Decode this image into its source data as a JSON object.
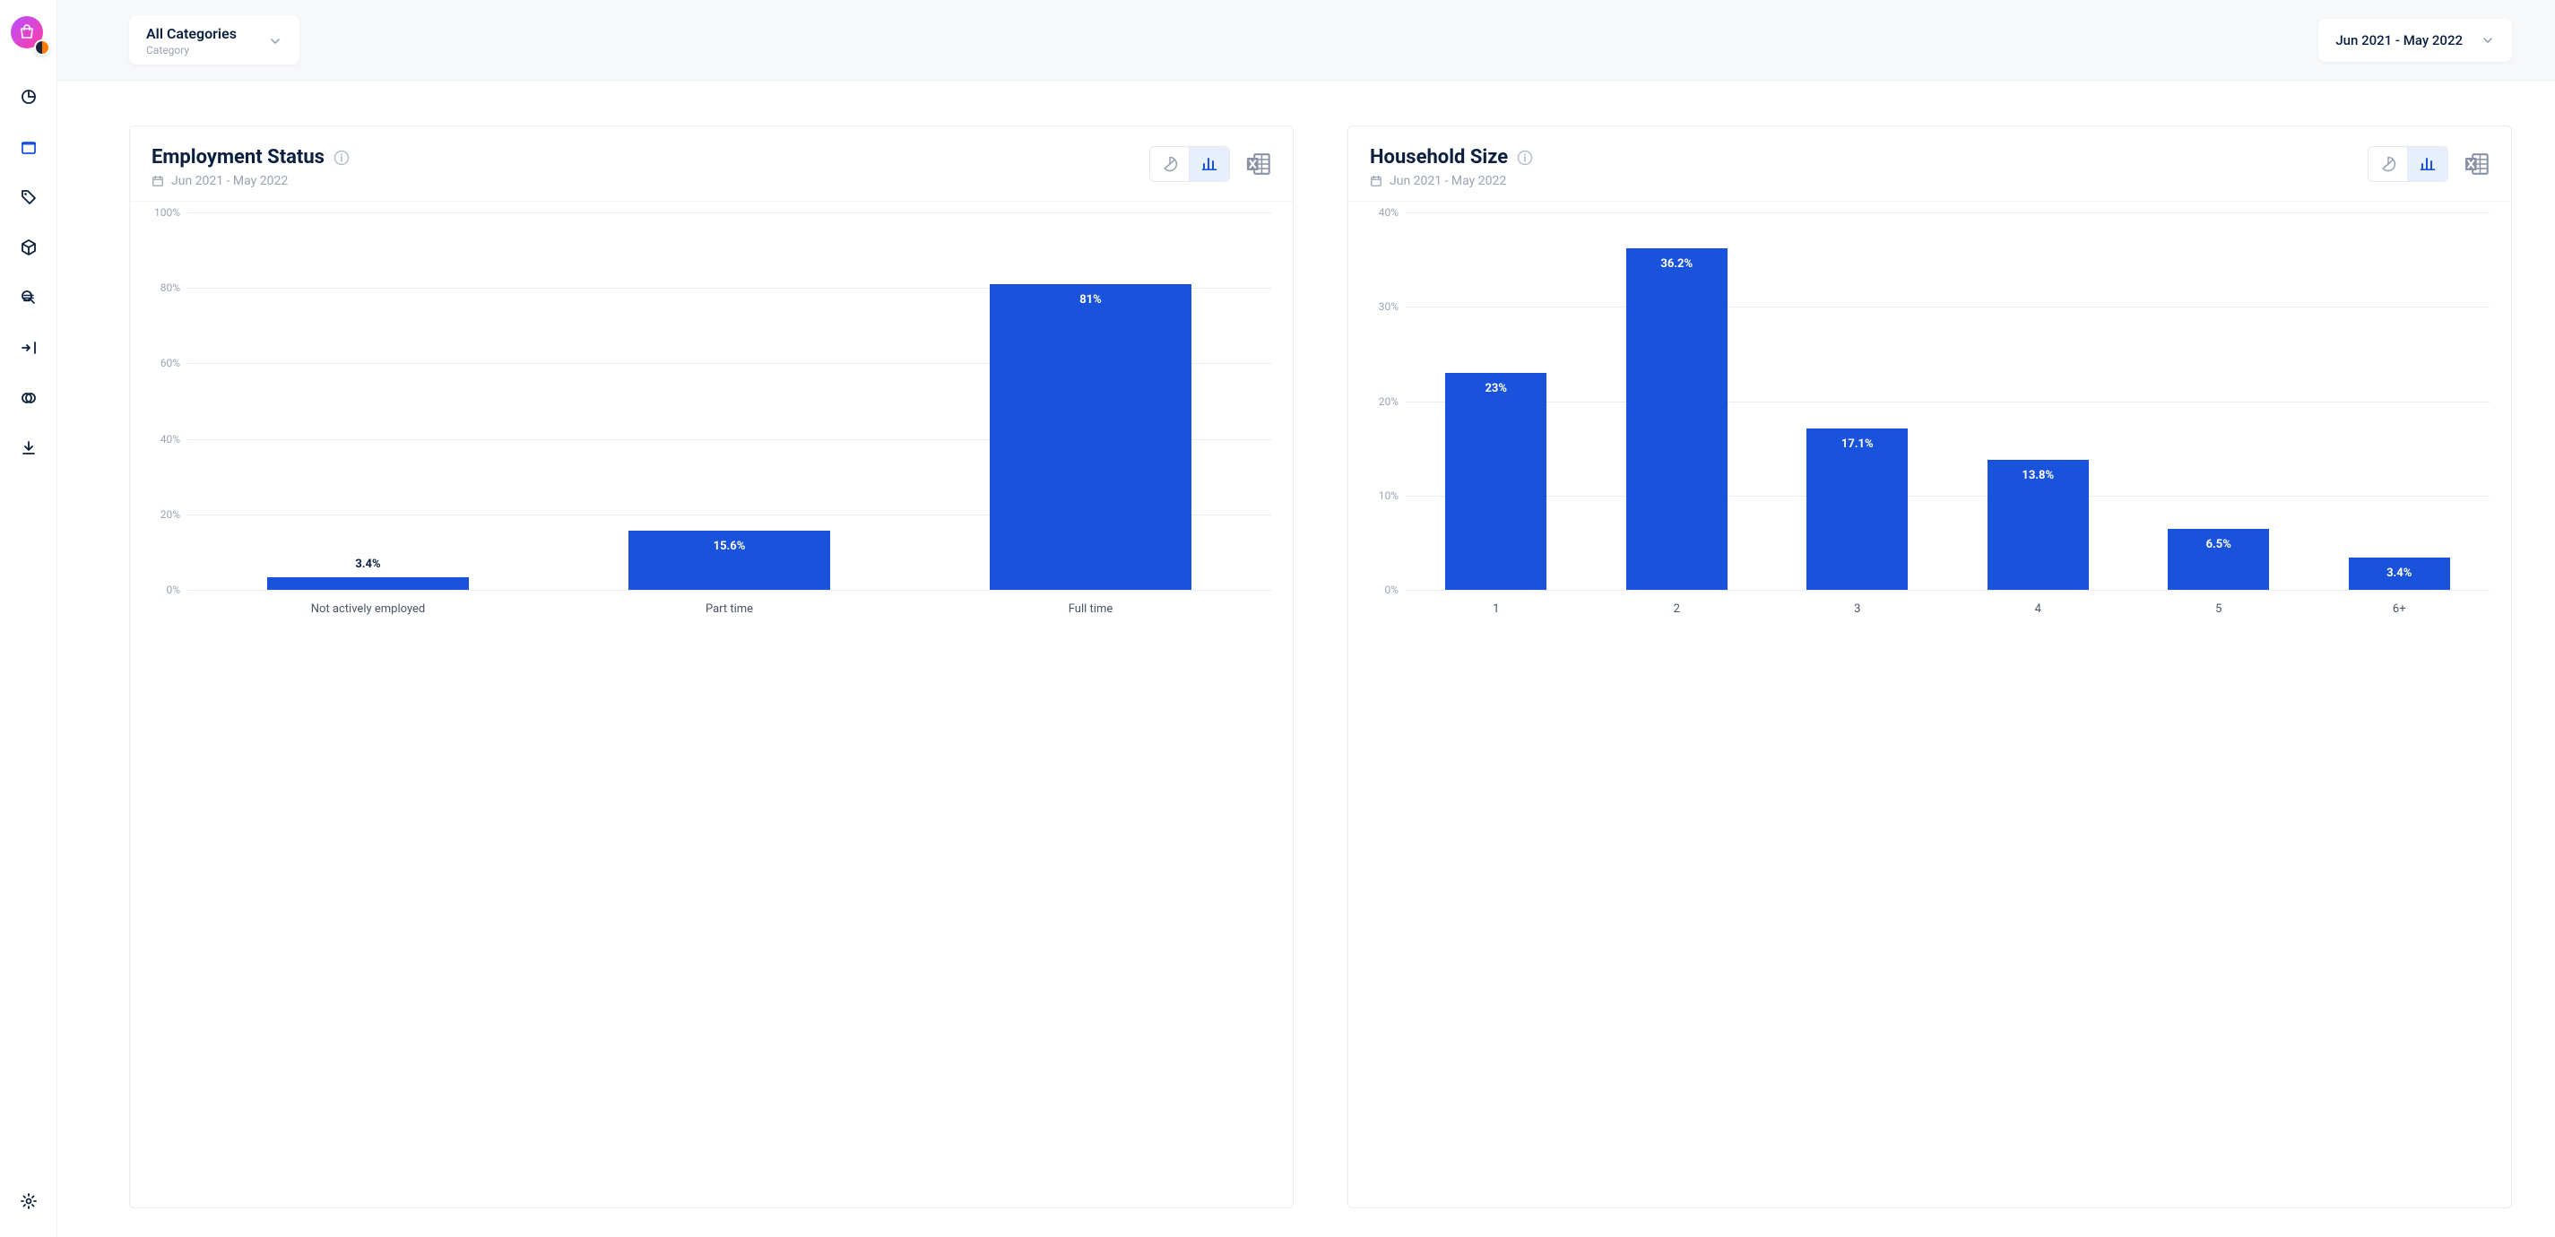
{
  "colors": {
    "accent": "#1952db",
    "text": "#0b1f3f",
    "muted": "#9aa3b2",
    "grid": "#e7eaef",
    "card_border": "#e9ecf2",
    "page_bg": "#ffffff",
    "topbar_bg": "#f7f8fa",
    "bar_fill": "#1952db",
    "toggle_active_bg": "#e8effc"
  },
  "topbar": {
    "category_dropdown": {
      "value": "All Categories",
      "subtitle": "Category"
    },
    "date_dropdown": {
      "value": "Jun 2021 - May 2022"
    }
  },
  "sidebar": {
    "items": [
      {
        "name": "pie-overview",
        "active": false
      },
      {
        "name": "retail",
        "active": true
      },
      {
        "name": "pricing",
        "active": false
      },
      {
        "name": "product",
        "active": false
      },
      {
        "name": "search",
        "active": false
      },
      {
        "name": "incoming",
        "active": false
      },
      {
        "name": "overlap",
        "active": false
      },
      {
        "name": "download",
        "active": false
      }
    ],
    "settings": {
      "name": "settings"
    }
  },
  "cards": [
    {
      "id": "employment",
      "title": "Employment Status",
      "date_range": "Jun 2021 - May 2022",
      "chart": {
        "type": "bar",
        "y_max": 100,
        "y_step": 20,
        "y_suffix": "%",
        "bar_color": "#1952db",
        "bar_width_pct": 56,
        "categories": [
          {
            "label": "Not actively employed",
            "value": 3.4,
            "display": "3.4%"
          },
          {
            "label": "Part time",
            "value": 15.6,
            "display": "15.6%"
          },
          {
            "label": "Full time",
            "value": 81,
            "display": "81%"
          }
        ]
      }
    },
    {
      "id": "household",
      "title": "Household Size",
      "date_range": "Jun 2021 - May 2022",
      "chart": {
        "type": "bar",
        "y_max": 40,
        "y_step": 10,
        "y_suffix": "%",
        "bar_color": "#1952db",
        "bar_width_pct": 56,
        "categories": [
          {
            "label": "1",
            "value": 23,
            "display": "23%"
          },
          {
            "label": "2",
            "value": 36.2,
            "display": "36.2%"
          },
          {
            "label": "3",
            "value": 17.1,
            "display": "17.1%"
          },
          {
            "label": "4",
            "value": 13.8,
            "display": "13.8%"
          },
          {
            "label": "5",
            "value": 6.5,
            "display": "6.5%"
          },
          {
            "label": "6+",
            "value": 3.4,
            "display": "3.4%"
          }
        ]
      }
    }
  ]
}
